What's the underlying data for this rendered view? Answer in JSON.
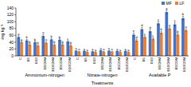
{
  "chart_data": {
    "type": "bar",
    "y_label": "mg kg⁻¹",
    "x_label": "Treatments",
    "groups": [
      "Ammonium-nitrogen",
      "Nitrate-nitrogen",
      "Available P"
    ],
    "categories": [
      "C",
      "B5",
      "B10",
      "B5CHM",
      "B10CHM",
      "B5COM",
      "B10COM",
      "C",
      "B5",
      "B10",
      "B5CHM",
      "B10CHM",
      "B5COM",
      "B10COM",
      "C",
      "B5",
      "B10",
      "B5CHM",
      "B10CHM",
      "B5COM",
      "B10COM"
    ],
    "series": [
      {
        "name": "MF",
        "color": "#4472c4",
        "values": [
          55,
          45,
          40,
          58,
          48,
          47,
          42,
          15,
          14,
          13,
          16,
          15,
          14,
          14,
          62,
          78,
          72,
          95,
          128,
          92,
          110
        ],
        "errors": [
          4,
          3,
          3,
          4,
          3,
          3,
          3,
          1,
          1,
          1,
          1,
          1,
          1,
          1,
          5,
          5,
          5,
          6,
          6,
          6,
          6
        ],
        "letters": [
          "a",
          "b",
          "b",
          "a",
          "b",
          "b",
          "c",
          "a",
          "a",
          "a",
          "a",
          "a",
          "a",
          "a",
          "e",
          "d",
          "d",
          "c",
          "a",
          "c",
          "b"
        ]
      },
      {
        "name": "LF",
        "color": "#ed7d31",
        "values": [
          40,
          33,
          30,
          38,
          32,
          33,
          30,
          12,
          11,
          11,
          12,
          12,
          11,
          11,
          45,
          55,
          50,
          68,
          80,
          62,
          75
        ],
        "errors": [
          3,
          3,
          3,
          3,
          3,
          3,
          3,
          1,
          1,
          1,
          1,
          1,
          1,
          1,
          4,
          4,
          4,
          4,
          4,
          4,
          4
        ],
        "letters": [
          "a",
          "b",
          "b",
          "a",
          "b",
          "b",
          "b",
          "a",
          "a",
          "a",
          "a",
          "a",
          "a",
          "a",
          "d",
          "c",
          "c",
          "b",
          "a",
          "b",
          "a"
        ]
      }
    ],
    "ylim": [
      0,
      140
    ],
    "yticks": [
      0,
      20,
      40,
      60,
      80,
      100,
      120,
      140
    ],
    "grid": false,
    "legend": "top-right"
  }
}
